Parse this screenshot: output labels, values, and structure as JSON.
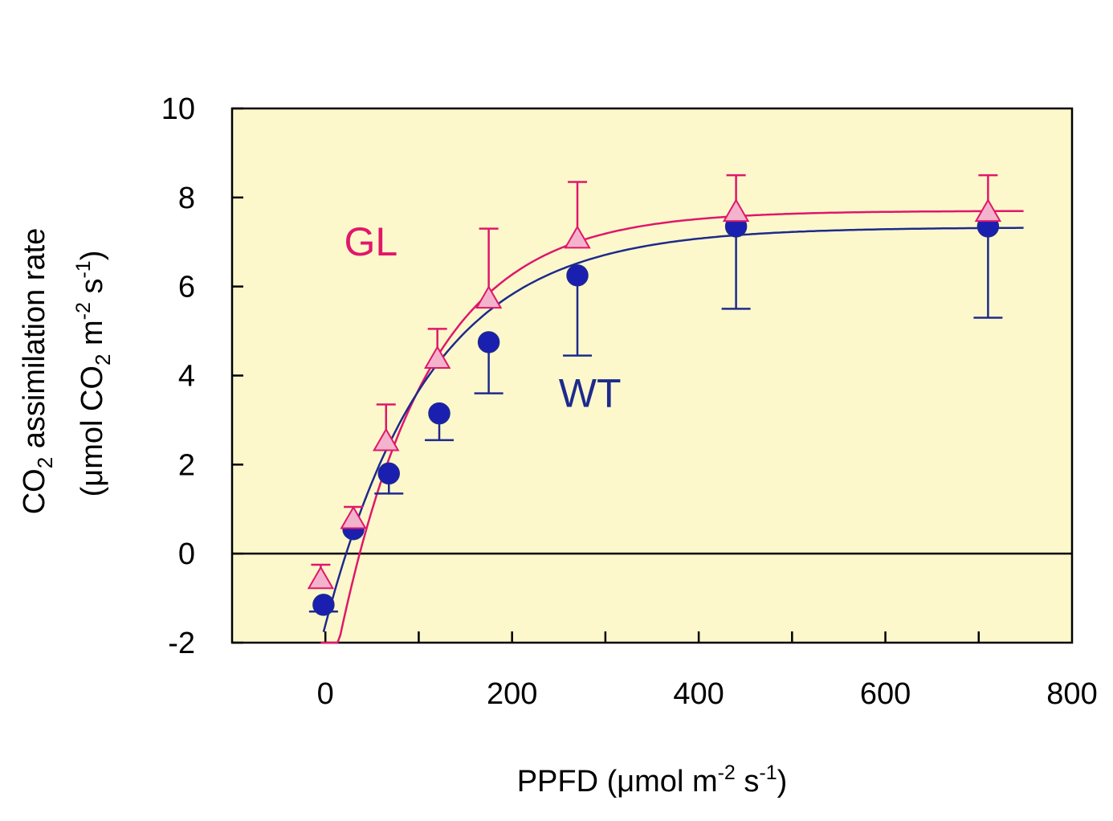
{
  "chart_data": {
    "type": "line",
    "xlim": [
      -100,
      800
    ],
    "ylim": [
      -2,
      10
    ],
    "x_ticks": [
      0,
      200,
      400,
      600,
      800
    ],
    "x_ticks_display": [
      "0",
      "200",
      "400",
      "600",
      "800"
    ],
    "x_minor_ticks": [
      0,
      100,
      200,
      300,
      400,
      500,
      600,
      700
    ],
    "y_ticks": [
      -2,
      0,
      2,
      4,
      6,
      8,
      10
    ],
    "y_ticks_display": [
      "-2",
      "0",
      "2",
      "4",
      "6",
      "8",
      "10"
    ],
    "zero_line": true,
    "plot_background": "#fcf8cc",
    "xlabel": {
      "main": "PPFD (μmol m",
      "exp1": "-2",
      "mid": " s",
      "exp2": "-1",
      "end": ")"
    },
    "ylabel": {
      "line1_prefix": "CO",
      "line1_sub": "2",
      "line1_suffix": " assimilation rate",
      "line2_a": "(μmol CO",
      "line2_sub": "2",
      "line2_b": " m",
      "line2_exp1": "-2",
      "line2_c": " s",
      "line2_exp2": "-1",
      "line2_d": ")"
    },
    "series": [
      {
        "name": "GL",
        "marker": "triangle",
        "color": "#e0176a",
        "marker_fill": "#f4b3cd",
        "x": [
          -5,
          30,
          65,
          120,
          175,
          270,
          440,
          710
        ],
        "y": [
          -0.6,
          0.75,
          2.5,
          4.35,
          5.7,
          7.05,
          7.65,
          7.65
        ],
        "err_upper": [
          0.35,
          0.3,
          0.85,
          0.7,
          1.6,
          1.3,
          0.85,
          0.85
        ],
        "err_lower": [
          0,
          0,
          0,
          0,
          0,
          0,
          0,
          0
        ],
        "curve": {
          "pmax": 8.96,
          "rd": 1.26,
          "k": 0.0103,
          "x0": 22,
          "x_end": 750
        }
      },
      {
        "name": "WT",
        "marker": "circle",
        "color": "#1e2a8c",
        "marker_fill": "#1a1fb0",
        "x": [
          -2,
          30,
          68,
          122,
          175,
          270,
          440,
          710
        ],
        "y": [
          -1.15,
          0.55,
          1.8,
          3.15,
          4.75,
          6.25,
          7.35,
          7.35
        ],
        "err_upper": [
          0,
          0,
          0,
          0,
          0,
          0,
          0,
          0
        ],
        "err_lower": [
          0.15,
          0,
          0.45,
          0.6,
          1.15,
          1.8,
          1.85,
          2.05
        ],
        "curve": {
          "pmax": 8.93,
          "rd": 1.6,
          "k": 0.0089,
          "x0": 0,
          "x_end": 750
        }
      }
    ],
    "annotations": [
      {
        "text": "GL",
        "x": 20,
        "y": 6.7,
        "series": "GL"
      },
      {
        "text": "WT",
        "x": 250,
        "y": 3.3,
        "series": "WT"
      }
    ]
  }
}
